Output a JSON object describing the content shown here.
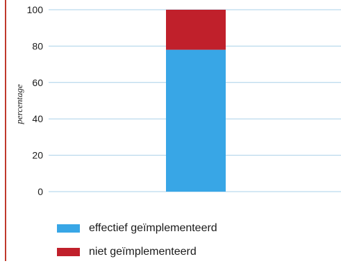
{
  "chart_data": {
    "type": "bar",
    "stacked": true,
    "categories": [
      ""
    ],
    "series": [
      {
        "name": "effectief geïmplementeerd",
        "values": [
          78
        ],
        "color": "#38a6e6"
      },
      {
        "name": "niet geïmplementeerd",
        "values": [
          22
        ],
        "color": "#c0202b"
      }
    ],
    "title": "",
    "xlabel": "",
    "ylabel": "percentage",
    "ylim": [
      0,
      100
    ],
    "yticks": [
      0,
      20,
      40,
      60,
      80,
      100
    ],
    "grid": true,
    "legend_position": "bottom"
  }
}
